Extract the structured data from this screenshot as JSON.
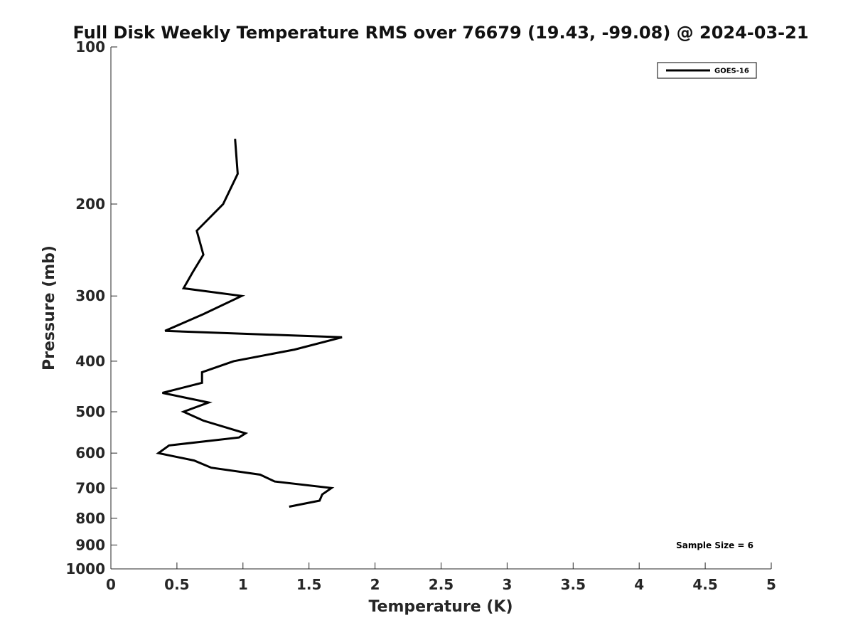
{
  "chart_data": {
    "type": "line",
    "title": "Full Disk Weekly Temperature RMS over 76679 (19.43, -99.08) @ 2024-03-21",
    "xlabel": "Temperature (K)",
    "ylabel": "Pressure (mb)",
    "xlim": [
      0,
      5
    ],
    "ylim": [
      100,
      1000
    ],
    "y_scale": "log",
    "y_reversed": true,
    "grid": false,
    "legend_position": "top-right",
    "x_ticks": [
      0,
      0.5,
      1,
      1.5,
      2,
      2.5,
      3,
      3.5,
      4,
      4.5,
      5
    ],
    "x_tick_labels": [
      "0",
      "0.5",
      "1",
      "1.5",
      "2",
      "2.5",
      "3",
      "3.5",
      "4",
      "4.5",
      "5"
    ],
    "y_ticks": [
      100,
      200,
      300,
      400,
      500,
      600,
      700,
      800,
      900,
      1000
    ],
    "y_tick_labels": [
      "100",
      "200",
      "300",
      "400",
      "500",
      "600",
      "700",
      "800",
      "900",
      "1000"
    ],
    "annotation": "Sample Size = 6",
    "series": [
      {
        "name": "GOES-16",
        "color": "#000000",
        "points": [
          {
            "x": 0.94,
            "p": 150
          },
          {
            "x": 0.96,
            "p": 175
          },
          {
            "x": 0.85,
            "p": 200
          },
          {
            "x": 0.65,
            "p": 225
          },
          {
            "x": 0.7,
            "p": 250
          },
          {
            "x": 0.62,
            "p": 270
          },
          {
            "x": 0.55,
            "p": 290
          },
          {
            "x": 0.99,
            "p": 300
          },
          {
            "x": 0.7,
            "p": 325
          },
          {
            "x": 0.41,
            "p": 350
          },
          {
            "x": 1.75,
            "p": 360
          },
          {
            "x": 1.39,
            "p": 380
          },
          {
            "x": 0.93,
            "p": 400
          },
          {
            "x": 0.69,
            "p": 420
          },
          {
            "x": 0.69,
            "p": 440
          },
          {
            "x": 0.39,
            "p": 460
          },
          {
            "x": 0.74,
            "p": 480
          },
          {
            "x": 0.55,
            "p": 500
          },
          {
            "x": 0.7,
            "p": 520
          },
          {
            "x": 1.02,
            "p": 550
          },
          {
            "x": 0.97,
            "p": 560
          },
          {
            "x": 0.44,
            "p": 580
          },
          {
            "x": 0.36,
            "p": 600
          },
          {
            "x": 0.63,
            "p": 620
          },
          {
            "x": 0.76,
            "p": 640
          },
          {
            "x": 1.13,
            "p": 660
          },
          {
            "x": 1.24,
            "p": 680
          },
          {
            "x": 1.67,
            "p": 700
          },
          {
            "x": 1.6,
            "p": 720
          },
          {
            "x": 1.58,
            "p": 740
          },
          {
            "x": 1.35,
            "p": 760
          }
        ]
      }
    ]
  }
}
